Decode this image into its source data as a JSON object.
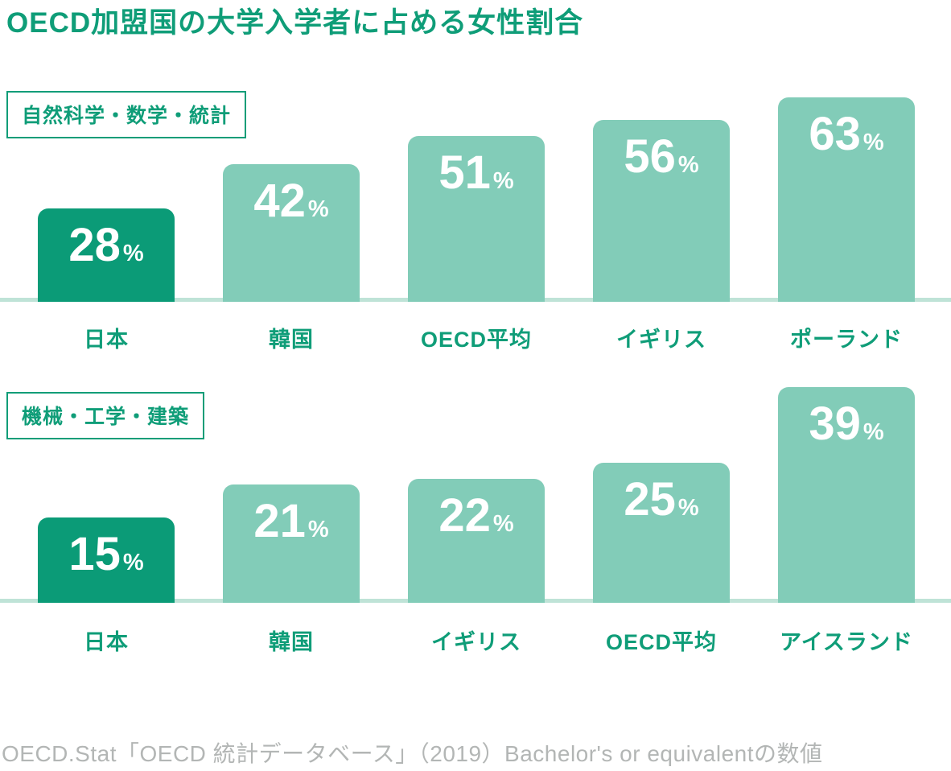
{
  "title": "OECD加盟国の大学入学者に占める女性割合",
  "source_note": "OECD.Stat「OECD 統計データベース」（2019）Bachelor's or equivalentの数値",
  "colors": {
    "bar_dark": "#0b9b77",
    "bar_light": "#82ccb8",
    "baseline": "#bfe3d7",
    "text_green": "#0f9d78",
    "note_gray": "#b3b6b5",
    "value_text": "#ffffff"
  },
  "chart_data": [
    {
      "type": "bar",
      "title": "自然科学・数学・統計",
      "categories": [
        "日本",
        "韓国",
        "OECD平均",
        "イギリス",
        "ポーランド"
      ],
      "values": [
        28,
        42,
        51,
        56,
        63
      ],
      "unit": "%",
      "highlight_category": "日本",
      "ylim": [
        0,
        70
      ],
      "value_labels": "inside-top",
      "grid": "off",
      "legend": "none"
    },
    {
      "type": "bar",
      "title": "機械・工学・建築",
      "categories": [
        "日本",
        "韓国",
        "イギリス",
        "OECD平均",
        "アイスランド"
      ],
      "values": [
        15,
        21,
        22,
        25,
        39
      ],
      "unit": "%",
      "highlight_category": "日本",
      "ylim": [
        0,
        45
      ],
      "value_labels": "inside-top",
      "grid": "off",
      "legend": "none"
    }
  ]
}
